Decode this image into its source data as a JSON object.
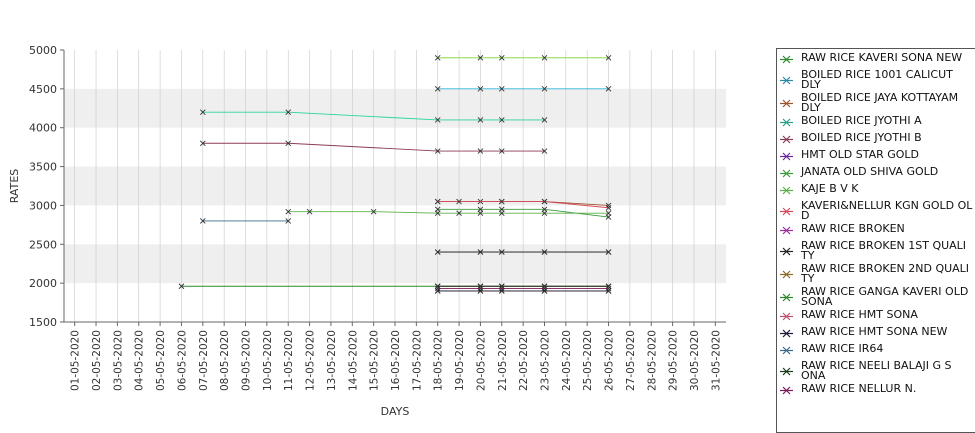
{
  "chart_data": {
    "type": "line",
    "xlabel": "DAYS",
    "ylabel": "RATES",
    "ylim": [
      1500,
      5000
    ],
    "yticks": [
      1500,
      2000,
      2500,
      3000,
      3500,
      4000,
      4500,
      5000
    ],
    "x": [
      "01-05-2020",
      "02-05-2020",
      "03-05-2020",
      "04-05-2020",
      "05-05-2020",
      "06-05-2020",
      "07-05-2020",
      "08-05-2020",
      "09-05-2020",
      "10-05-2020",
      "11-05-2020",
      "12-05-2020",
      "13-05-2020",
      "14-05-2020",
      "15-05-2020",
      "16-05-2020",
      "17-05-2020",
      "18-05-2020",
      "19-05-2020",
      "20-05-2020",
      "21-05-2020",
      "22-05-2020",
      "23-05-2020",
      "24-05-2020",
      "25-05-2020",
      "26-05-2020",
      "27-05-2020",
      "28-05-2020",
      "29-05-2020",
      "30-05-2020",
      "31-05-2020"
    ],
    "grid": "horizontal alternating bands and vertical lines",
    "legend_placement": "right",
    "series": [
      {
        "name": "RAW RICE KAVERI SONA NEW",
        "color": "#7fd42a",
        "points": [
          [
            "18-05-2020",
            4900
          ],
          [
            "20-05-2020",
            4900
          ],
          [
            "21-05-2020",
            4900
          ],
          [
            "23-05-2020",
            4900
          ],
          [
            "26-05-2020",
            4900
          ]
        ]
      },
      {
        "name": "BOILED RICE 1001 CALICUT DLY",
        "color": "#2ab3d4",
        "points": [
          [
            "18-05-2020",
            4500
          ],
          [
            "20-05-2020",
            4500
          ],
          [
            "21-05-2020",
            4500
          ],
          [
            "23-05-2020",
            4500
          ],
          [
            "26-05-2020",
            4500
          ]
        ]
      },
      {
        "name": "BOILED RICE JAYA KOTTAYAM DLY",
        "color": "#a0522d",
        "points": [
          [
            "18-05-2020",
            3050
          ],
          [
            "20-05-2020",
            3050
          ],
          [
            "21-05-2020",
            3050
          ],
          [
            "23-05-2020",
            3050
          ],
          [
            "26-05-2020",
            3000
          ]
        ]
      },
      {
        "name": "BOILED RICE JYOTHI A",
        "color": "#2ad4a0",
        "points": [
          [
            "07-05-2020",
            4200
          ],
          [
            "11-05-2020",
            4200
          ],
          [
            "18-05-2020",
            4100
          ],
          [
            "20-05-2020",
            4100
          ],
          [
            "21-05-2020",
            4100
          ],
          [
            "23-05-2020",
            4100
          ]
        ]
      },
      {
        "name": "BOILED RICE JYOTHI B",
        "color": "#8b3a5a",
        "points": [
          [
            "07-05-2020",
            3800
          ],
          [
            "11-05-2020",
            3800
          ],
          [
            "18-05-2020",
            3700
          ],
          [
            "20-05-2020",
            3700
          ],
          [
            "21-05-2020",
            3700
          ],
          [
            "23-05-2020",
            3700
          ]
        ]
      },
      {
        "name": "HMT OLD STAR GOLD",
        "color": "#6a2aa0",
        "points": [
          [
            "18-05-2020",
            2400
          ],
          [
            "20-05-2020",
            2400
          ],
          [
            "21-05-2020",
            2400
          ],
          [
            "23-05-2020",
            2400
          ],
          [
            "26-05-2020",
            2400
          ]
        ]
      },
      {
        "name": "JANATA OLD SHIVA GOLD",
        "color": "#3a9a3a",
        "points": [
          [
            "18-05-2020",
            2950
          ],
          [
            "20-05-2020",
            2950
          ],
          [
            "21-05-2020",
            2950
          ],
          [
            "23-05-2020",
            2950
          ],
          [
            "26-05-2020",
            2850
          ]
        ]
      },
      {
        "name": "KAJE B V K",
        "color": "#5ab04a",
        "points": [
          [
            "11-05-2020",
            2920
          ],
          [
            "12-05-2020",
            2920
          ],
          [
            "15-05-2020",
            2920
          ],
          [
            "18-05-2020",
            2900
          ],
          [
            "19-05-2020",
            2900
          ],
          [
            "20-05-2020",
            2900
          ],
          [
            "21-05-2020",
            2900
          ],
          [
            "23-05-2020",
            2900
          ],
          [
            "26-05-2020",
            2900
          ]
        ]
      },
      {
        "name": "KAVERI&NELLUR KGN GOLD OLD",
        "color": "#d44a5a",
        "points": [
          [
            "18-05-2020",
            3050
          ],
          [
            "19-05-2020",
            3050
          ],
          [
            "21-05-2020",
            3050
          ],
          [
            "23-05-2020",
            3050
          ],
          [
            "26-05-2020",
            2970
          ]
        ]
      },
      {
        "name": "RAW RICE BROKEN",
        "color": "#a02aa0",
        "points": [
          [
            "18-05-2020",
            1900
          ],
          [
            "20-05-2020",
            1900
          ],
          [
            "21-05-2020",
            1900
          ],
          [
            "23-05-2020",
            1900
          ],
          [
            "26-05-2020",
            1900
          ]
        ]
      },
      {
        "name": "RAW RICE BROKEN 1ST QUALITY",
        "color": "#222222",
        "points": [
          [
            "18-05-2020",
            2400
          ],
          [
            "20-05-2020",
            2400
          ],
          [
            "21-05-2020",
            2400
          ],
          [
            "23-05-2020",
            2400
          ],
          [
            "26-05-2020",
            2400
          ]
        ]
      },
      {
        "name": "RAW RICE BROKEN 2ND QUALITY",
        "color": "#8a6a2a",
        "points": [
          [
            "18-05-2020",
            1900
          ],
          [
            "20-05-2020",
            1900
          ],
          [
            "21-05-2020",
            1900
          ],
          [
            "23-05-2020",
            1900
          ],
          [
            "26-05-2020",
            1900
          ]
        ]
      },
      {
        "name": "RAW RICE GANGA KAVERI OLD SONA",
        "color": "#2a8a2a",
        "points": [
          [
            "06-05-2020",
            1960
          ],
          [
            "18-05-2020",
            1960
          ],
          [
            "20-05-2020",
            1960
          ],
          [
            "21-05-2020",
            1960
          ],
          [
            "23-05-2020",
            1960
          ],
          [
            "26-05-2020",
            1960
          ]
        ]
      },
      {
        "name": "RAW RICE HMT SONA",
        "color": "#c0506a",
        "points": [
          [
            "18-05-2020",
            1960
          ],
          [
            "20-05-2020",
            1960
          ],
          [
            "21-05-2020",
            1960
          ],
          [
            "23-05-2020",
            1960
          ],
          [
            "26-05-2020",
            1960
          ]
        ]
      },
      {
        "name": "RAW RICE HMT SONA NEW",
        "color": "#1a1a3a",
        "points": [
          [
            "18-05-2020",
            1900
          ],
          [
            "20-05-2020",
            1900
          ],
          [
            "21-05-2020",
            1900
          ],
          [
            "23-05-2020",
            1900
          ],
          [
            "26-05-2020",
            1900
          ]
        ]
      },
      {
        "name": "RAW RICE IR64",
        "color": "#3a6a8a",
        "points": [
          [
            "07-05-2020",
            2800
          ],
          [
            "11-05-2020",
            2800
          ]
        ]
      },
      {
        "name": "RAW RICE NEELI BALAJI G SONA",
        "color": "#1a3a1a",
        "points": [
          [
            "18-05-2020",
            1960
          ],
          [
            "20-05-2020",
            1960
          ],
          [
            "21-05-2020",
            1960
          ],
          [
            "23-05-2020",
            1960
          ],
          [
            "26-05-2020",
            1960
          ]
        ]
      },
      {
        "name": "RAW RICE NELLUR N.",
        "color": "#7a1a5a",
        "points": [
          [
            "18-05-2020",
            1930
          ],
          [
            "20-05-2020",
            1930
          ],
          [
            "21-05-2020",
            1930
          ],
          [
            "23-05-2020",
            1930
          ],
          [
            "26-05-2020",
            1930
          ]
        ]
      }
    ]
  },
  "legend": {
    "items": [
      {
        "label": "RAW RICE KAVERI SONA NEW",
        "color": "#2a8a2a"
      },
      {
        "label": "BOILED RICE 1001 CALICUT\nDLY",
        "color": "#2a8aa0"
      },
      {
        "label": "BOILED RICE JAYA KOTTAYAM\n DLY",
        "color": "#a0522d"
      },
      {
        "label": "BOILED RICE JYOTHI A",
        "color": "#2aa08a"
      },
      {
        "label": "BOILED RICE JYOTHI B",
        "color": "#8b3a5a"
      },
      {
        "label": "HMT OLD STAR GOLD",
        "color": "#6a2aa0"
      },
      {
        "label": "JANATA OLD SHIVA GOLD",
        "color": "#3a9a3a"
      },
      {
        "label": "KAJE B V K",
        "color": "#5ab04a"
      },
      {
        "label": "KAVERI&NELLUR KGN GOLD OL\nD",
        "color": "#d44a5a"
      },
      {
        "label": "RAW RICE BROKEN",
        "color": "#a02aa0"
      },
      {
        "label": "RAW RICE BROKEN 1ST QUALI\nTY",
        "color": "#222222"
      },
      {
        "label": "RAW RICE BROKEN 2ND QUALI\nTY",
        "color": "#8a6a2a"
      },
      {
        "label": "RAW RICE GANGA KAVERI OLD\n SONA",
        "color": "#2a8a2a"
      },
      {
        "label": "RAW RICE HMT SONA",
        "color": "#c0506a"
      },
      {
        "label": "RAW RICE HMT SONA NEW",
        "color": "#1a1a3a"
      },
      {
        "label": "RAW RICE IR64",
        "color": "#3a6a8a"
      },
      {
        "label": "RAW RICE NEELI BALAJI G S\nONA",
        "color": "#1a3a1a"
      },
      {
        "label": "RAW RICE NELLUR N.",
        "color": "#7a1a5a"
      }
    ]
  }
}
